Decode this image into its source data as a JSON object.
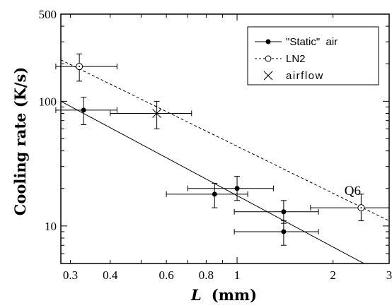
{
  "chart_data": {
    "type": "scatter",
    "xlabel": "L",
    "xlabel_unit": "(mm)",
    "ylabel": "Cooling  rate  (K/s)",
    "x_scale": "log",
    "y_scale": "log",
    "xlim": [
      0.28,
      3.0
    ],
    "ylim": [
      5,
      500
    ],
    "x_ticks": [
      {
        "value": 0.3,
        "label": "0.3"
      },
      {
        "value": 0.4,
        "label": "0.4"
      },
      {
        "value": 0.6,
        "label": "0.6"
      },
      {
        "value": 0.8,
        "label": "0.8"
      },
      {
        "value": 1,
        "label": "1"
      },
      {
        "value": 2,
        "label": "2"
      },
      {
        "value": 3,
        "label": "3"
      }
    ],
    "y_ticks": [
      {
        "value": 10,
        "label": "10"
      },
      {
        "value": 100,
        "label": "100"
      },
      {
        "value": 500,
        "label": "500"
      }
    ],
    "legend_position": "top-right",
    "series": [
      {
        "name": "\"Static\"  air",
        "marker": "filled-circle",
        "line": "solid",
        "points": [
          {
            "x": 0.33,
            "y": 85,
            "xerr": [
              0.27,
              0.42
            ],
            "yerr": [
              65,
              108
            ]
          },
          {
            "x": 0.85,
            "y": 18,
            "xerr": [
              0.6,
              1.08
            ],
            "yerr": [
              14,
              22
            ]
          },
          {
            "x": 1.0,
            "y": 20,
            "xerr": [
              0.7,
              1.3
            ],
            "yerr": [
              16,
              25
            ]
          },
          {
            "x": 1.4,
            "y": 13,
            "xerr": [
              0.98,
              1.8
            ],
            "yerr": [
              10.5,
              16
            ]
          },
          {
            "x": 1.4,
            "y": 9,
            "xerr": [
              0.98,
              1.8
            ],
            "yerr": [
              7,
              11
            ]
          }
        ],
        "fit_line": [
          {
            "x": 0.28,
            "y": 100
          },
          {
            "x": 2.5,
            "y": 5
          }
        ]
      },
      {
        "name": "LN2",
        "marker": "open-circle",
        "line": "dashed",
        "points": [
          {
            "x": 0.32,
            "y": 190,
            "xerr": [
              0.27,
              0.42
            ],
            "yerr": [
              145,
              240
            ]
          },
          {
            "x": 2.45,
            "y": 14,
            "xerr": [
              1.7,
              3.0
            ],
            "yerr": [
              11,
              18
            ]
          }
        ],
        "fit_line": [
          {
            "x": 0.28,
            "y": 215
          },
          {
            "x": 3.0,
            "y": 11
          }
        ]
      },
      {
        "name": "airflow",
        "marker": "cross",
        "line": "none",
        "points": [
          {
            "x": 0.56,
            "y": 80,
            "xerr": [
              0.4,
              0.72
            ],
            "yerr": [
              60,
              100
            ]
          }
        ]
      }
    ],
    "annotations": [
      {
        "text": "Q6",
        "x": 2.45,
        "y": 14
      }
    ]
  }
}
